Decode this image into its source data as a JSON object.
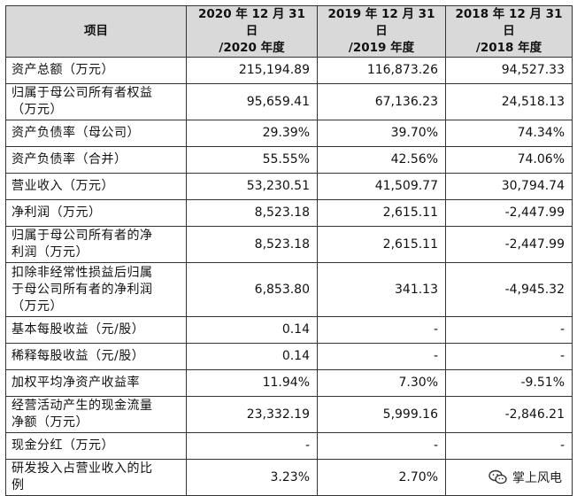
{
  "headers": {
    "item": "项目",
    "col2020": [
      "2020 年 12 月 31 日",
      "/2020 年度"
    ],
    "col2019": [
      "2019 年 12 月 31 日",
      "/2019 年度"
    ],
    "col2018": [
      "2018 年 12 月 31 日",
      "/2018 年度"
    ]
  },
  "rows": [
    {
      "label": [
        "资产总额（万元）"
      ],
      "v2020": "215,194.89",
      "v2019": "116,873.26",
      "v2018": "94,527.33"
    },
    {
      "label": [
        "归属于母公司所有者权益",
        "（万元）"
      ],
      "v2020": "95,659.41",
      "v2019": "67,136.23",
      "v2018": "24,518.13"
    },
    {
      "label": [
        "资产负债率（母公司）"
      ],
      "v2020": "29.39%",
      "v2019": "39.70%",
      "v2018": "74.34%"
    },
    {
      "label": [
        "资产负债率（合并）"
      ],
      "v2020": "55.55%",
      "v2019": "42.56%",
      "v2018": "74.06%"
    },
    {
      "label": [
        "营业收入（万元）"
      ],
      "v2020": "53,230.51",
      "v2019": "41,509.77",
      "v2018": "30,794.74"
    },
    {
      "label": [
        "净利润（万元）"
      ],
      "v2020": "8,523.18",
      "v2019": "2,615.11",
      "v2018": "-2,447.99"
    },
    {
      "label": [
        "归属于母公司所有者的净",
        "利润（万元）"
      ],
      "v2020": "8,523.18",
      "v2019": "2,615.11",
      "v2018": "-2,447.99"
    },
    {
      "label": [
        "扣除非经常性损益后归属",
        "于母公司所有者的净利润",
        "（万元）"
      ],
      "v2020": "6,853.80",
      "v2019": "341.13",
      "v2018": "-4,945.32"
    },
    {
      "label": [
        "基本每股收益（元/股）"
      ],
      "v2020": "0.14",
      "v2019": "-",
      "v2018": "-"
    },
    {
      "label": [
        "稀释每股收益（元/股）"
      ],
      "v2020": "0.14",
      "v2019": "-",
      "v2018": "-"
    },
    {
      "label": [
        "加权平均净资产收益率"
      ],
      "v2020": "11.94%",
      "v2019": "7.30%",
      "v2018": "-9.51%"
    },
    {
      "label": [
        "经营活动产生的现金流量",
        "净额（万元）"
      ],
      "v2020": "23,332.19",
      "v2019": "5,999.16",
      "v2018": "-2,846.21"
    },
    {
      "label": [
        "现金分红（万元）"
      ],
      "v2020": "-",
      "v2019": "-",
      "v2018": "-"
    },
    {
      "label": [
        "研发投入占营业收入的比",
        "例"
      ],
      "v2020": "3.23%",
      "v2019": "2.70%",
      "v2018": ""
    }
  ],
  "watermark": {
    "text": "掌上风电",
    "icon": "wechat-icon"
  }
}
